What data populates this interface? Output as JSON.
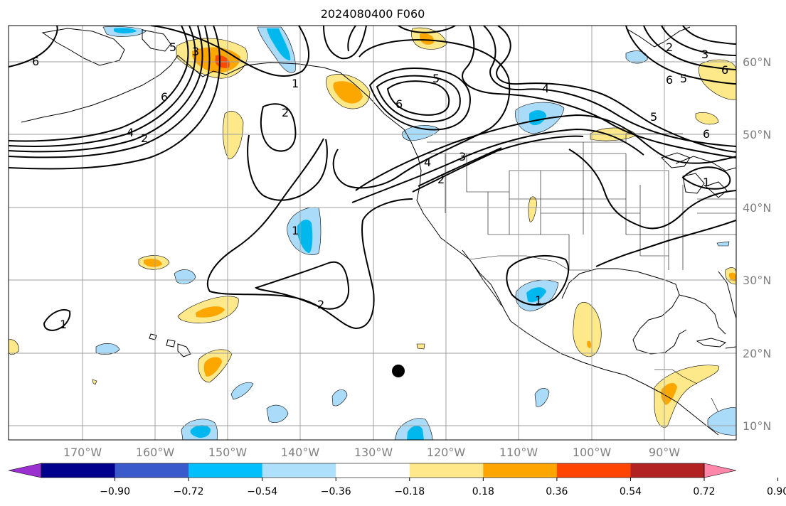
{
  "title": "2024080400 F060",
  "map": {
    "lon_labels": [
      "170°W",
      "160°W",
      "150°W",
      "140°W",
      "130°W",
      "120°W",
      "110°W",
      "100°W",
      "90°W"
    ],
    "lat_labels": [
      "60°N",
      "50°N",
      "40°N",
      "30°N",
      "20°N",
      "10°N"
    ],
    "contour_labels": [
      "6",
      "5",
      "4",
      "3",
      "2",
      "1"
    ],
    "colors": {
      "land_line": "#000000",
      "grid": "#a0a0a0",
      "pos_light": "#fde88a",
      "pos_mid": "#fba700",
      "pos_strong": "#fa4a00",
      "neg_light": "#aadcf9",
      "neg_mid": "#00b7ee"
    }
  },
  "colorbar": {
    "ticks": [
      "−0.90",
      "−0.72",
      "−0.54",
      "−0.36",
      "−0.18",
      "0.18",
      "0.36",
      "0.54",
      "0.72",
      "0.90"
    ],
    "colors": [
      "#9b30d0",
      "#00008c",
      "#3a5acc",
      "#00bfff",
      "#aee0fb",
      "#ffffff",
      "#ffe88a",
      "#ffa500",
      "#ff4500",
      "#b22222",
      "#ff88aa"
    ]
  }
}
